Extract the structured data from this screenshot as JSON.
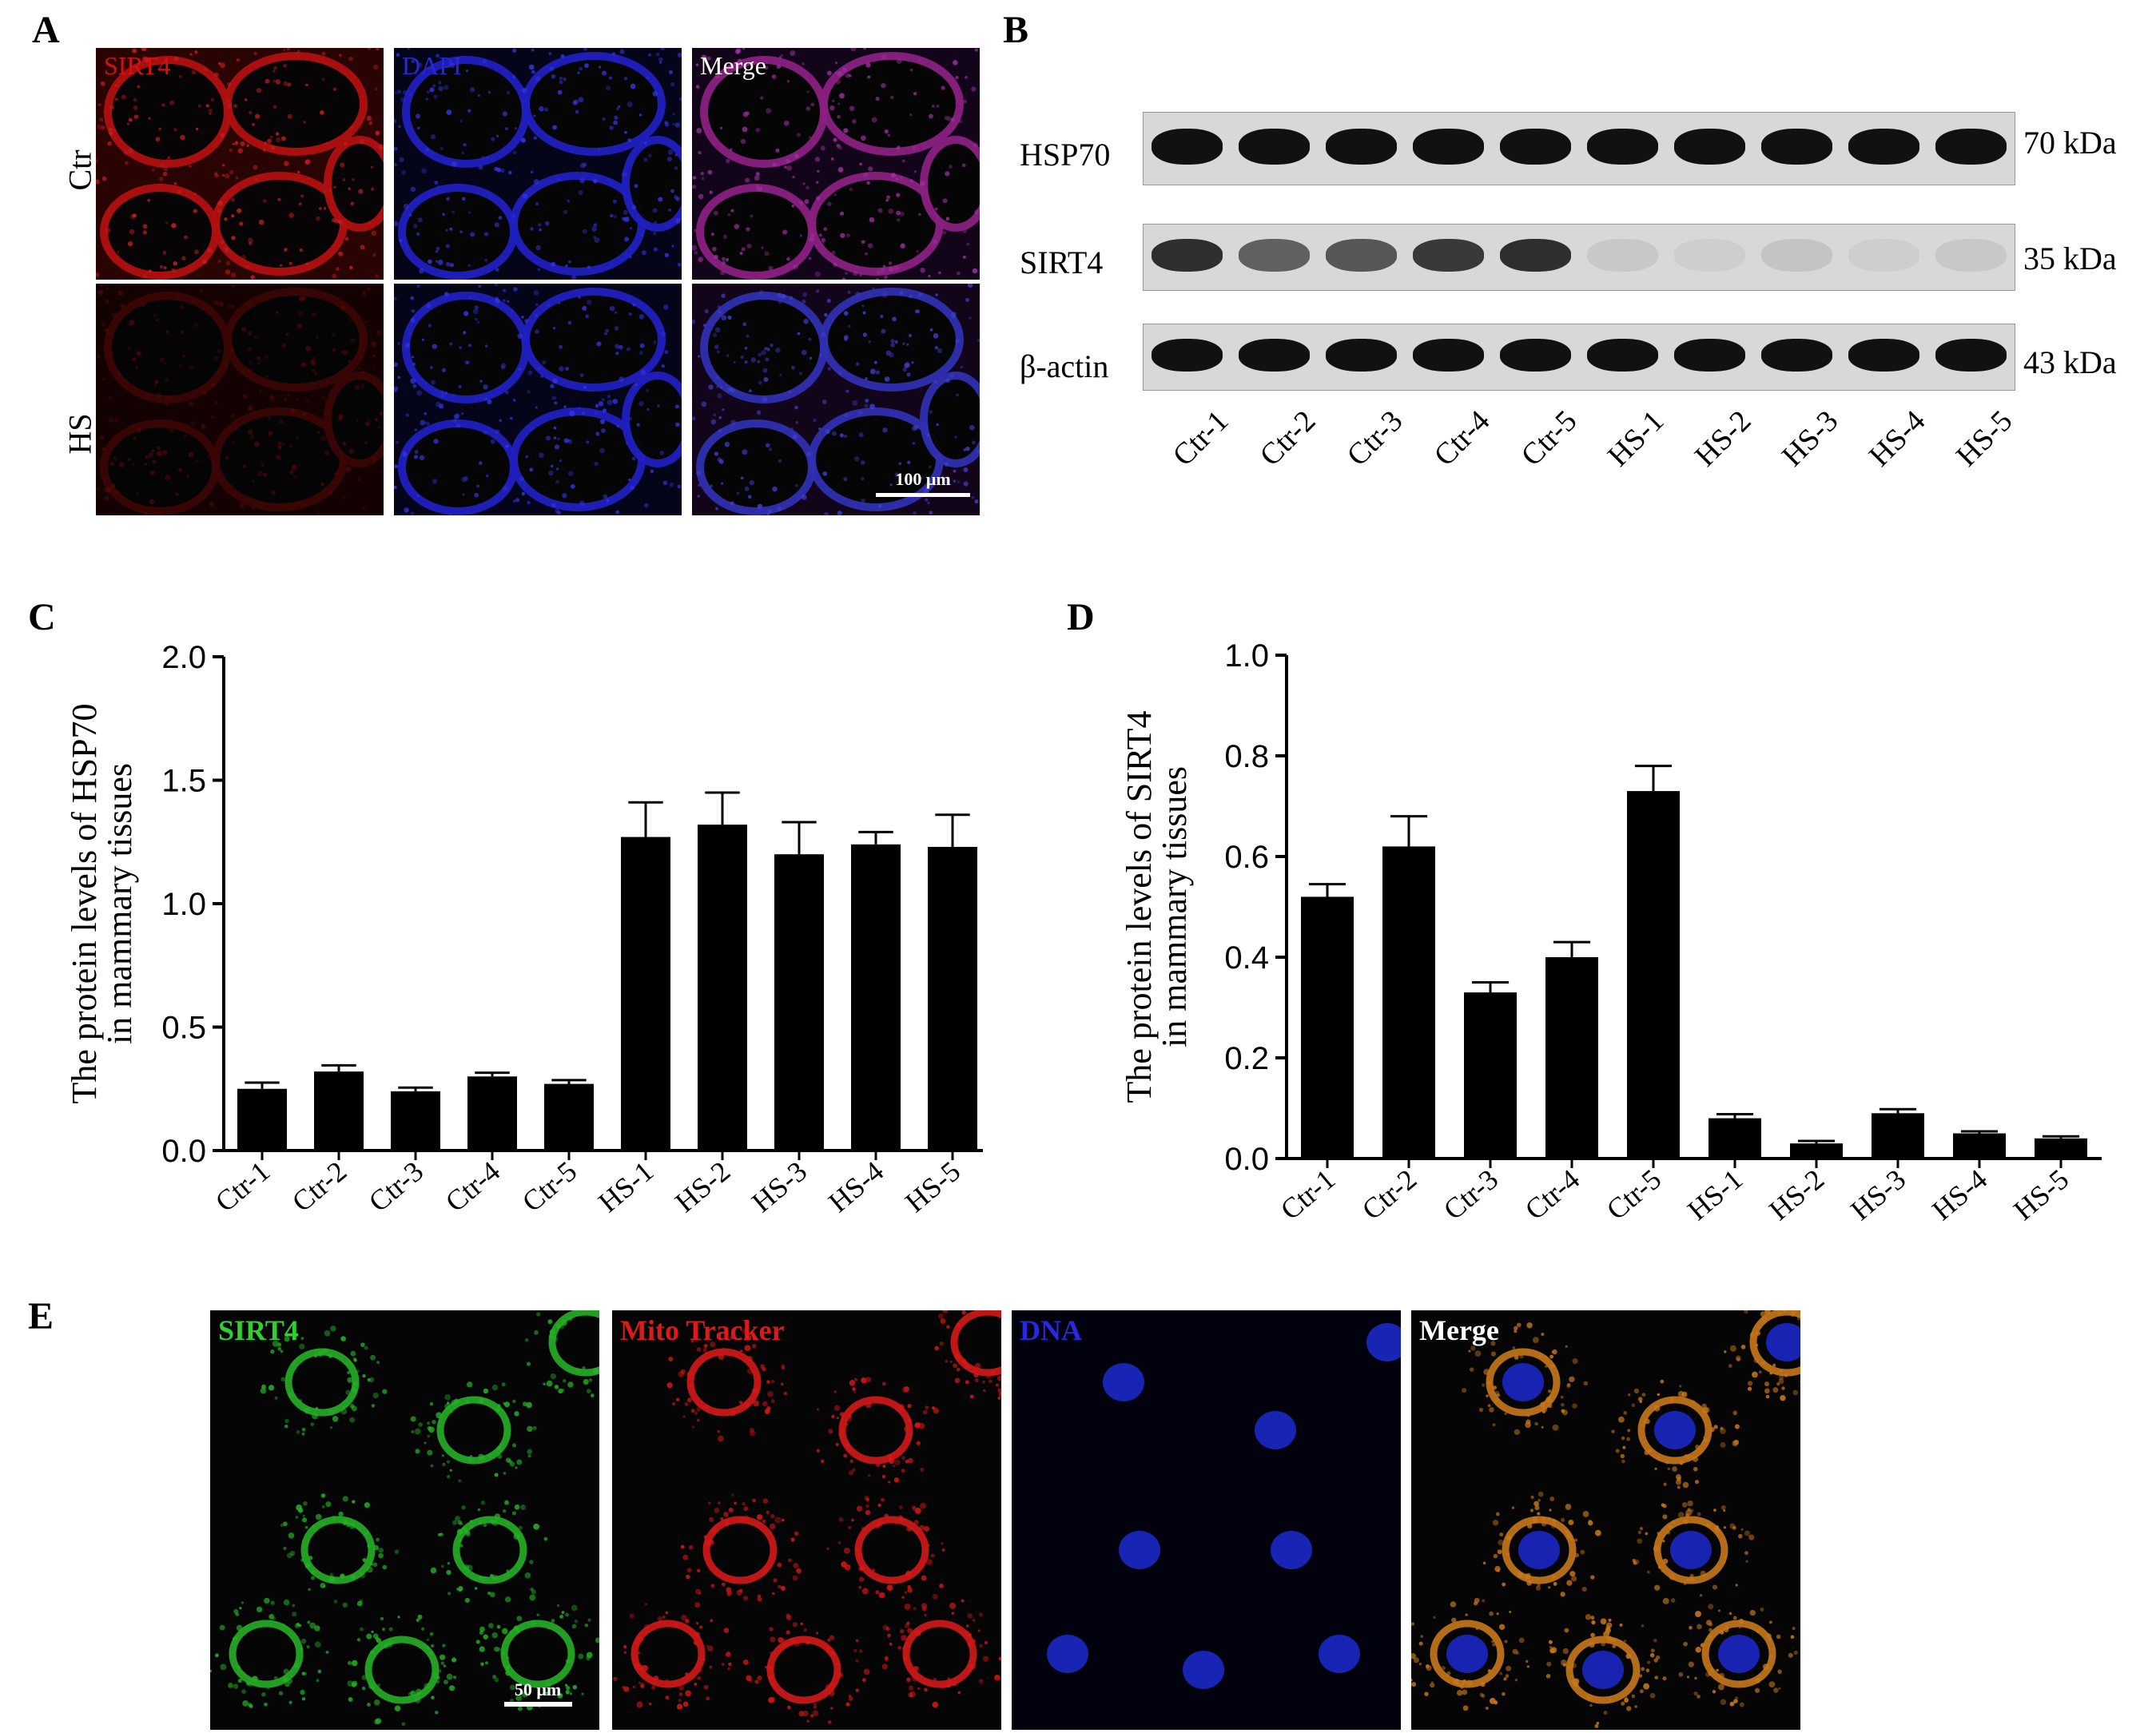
{
  "panel_a": {
    "letter": "A",
    "channels": [
      {
        "label": "SIRT4",
        "color": "#d41010"
      },
      {
        "label": "DAPI",
        "color": "#2828d8"
      },
      {
        "label": "Merge",
        "color": "#ffffff"
      }
    ],
    "rows": [
      {
        "label": "Ctr"
      },
      {
        "label": "HS"
      }
    ],
    "scale_bar": "100 μm"
  },
  "panel_b": {
    "letter": "B",
    "blots": [
      {
        "protein": "HSP70",
        "size": "70 kDa",
        "intensities": [
          1,
          1,
          1,
          1,
          1,
          1,
          1,
          1,
          1,
          1
        ]
      },
      {
        "protein": "SIRT4",
        "size": "35 kDa",
        "intensities": [
          0.85,
          0.6,
          0.65,
          0.8,
          0.85,
          0.08,
          0.05,
          0.1,
          0.05,
          0.08
        ]
      },
      {
        "protein": "β-actin",
        "size": "43 kDa",
        "intensities": [
          1,
          1,
          1,
          1,
          1,
          1,
          1,
          1,
          1,
          1
        ]
      }
    ],
    "lanes": [
      "Ctr-1",
      "Ctr-2",
      "Ctr-3",
      "Ctr-4",
      "Ctr-5",
      "HS-1",
      "HS-2",
      "HS-3",
      "HS-4",
      "HS-5"
    ]
  },
  "panel_c": {
    "letter": "C"
  },
  "panel_d": {
    "letter": "D"
  },
  "panel_e": {
    "letter": "E",
    "channels": [
      {
        "label": "SIRT4",
        "color": "#2fd02f"
      },
      {
        "label": "Mito Tracker",
        "color": "#e01818"
      },
      {
        "label": "DNA",
        "color": "#2828e0"
      },
      {
        "label": "Merge",
        "color": "#ffffff"
      }
    ],
    "scale_bar": "50 μm"
  },
  "chart_data": [
    {
      "type": "bar",
      "title": "",
      "xlabel": "",
      "ylabel": "The protein levels of HSP70 in mammary tissues",
      "ylabel_lines": [
        "The protein levels of HSP70",
        "in mammary tissues"
      ],
      "categories": [
        "Ctr-1",
        "Ctr-2",
        "Ctr-3",
        "Ctr-4",
        "Ctr-5",
        "HS-1",
        "HS-2",
        "HS-3",
        "HS-4",
        "HS-5"
      ],
      "values": [
        0.25,
        0.32,
        0.24,
        0.3,
        0.27,
        1.27,
        1.32,
        1.2,
        1.24,
        1.23
      ],
      "errors": [
        0.025,
        0.025,
        0.015,
        0.015,
        0.015,
        0.14,
        0.13,
        0.13,
        0.05,
        0.13
      ],
      "ylim": [
        0,
        2.0
      ],
      "yticks": [
        "0.0",
        "0.5",
        "1.0",
        "1.5",
        "2.0"
      ],
      "ytick_values": [
        0,
        0.5,
        1.0,
        1.5,
        2.0
      ]
    },
    {
      "type": "bar",
      "title": "",
      "xlabel": "",
      "ylabel": "The protein levels of SIRT4 in mammary tissues",
      "ylabel_lines": [
        "The protein levels of SIRT4",
        "in mammary tissues"
      ],
      "categories": [
        "Ctr-1",
        "Ctr-2",
        "Ctr-3",
        "Ctr-4",
        "Ctr-5",
        "HS-1",
        "HS-2",
        "HS-3",
        "HS-4",
        "HS-5"
      ],
      "values": [
        0.52,
        0.62,
        0.33,
        0.4,
        0.73,
        0.08,
        0.03,
        0.09,
        0.05,
        0.04
      ],
      "errors": [
        0.025,
        0.06,
        0.02,
        0.03,
        0.05,
        0.008,
        0.005,
        0.008,
        0.004,
        0.004
      ],
      "ylim": [
        0,
        1.0
      ],
      "yticks": [
        "0.0",
        "0.2",
        "0.4",
        "0.6",
        "0.8",
        "1.0"
      ],
      "ytick_values": [
        0,
        0.2,
        0.4,
        0.6,
        0.8,
        1.0
      ]
    }
  ]
}
